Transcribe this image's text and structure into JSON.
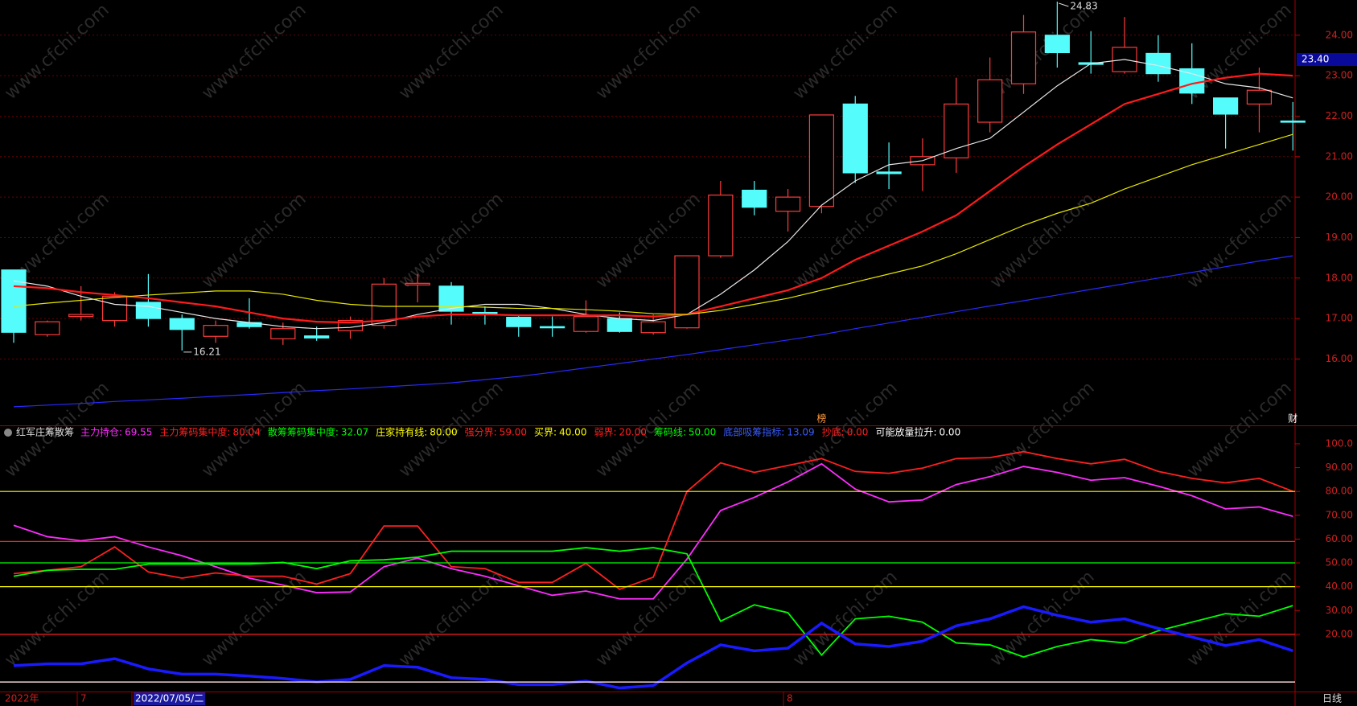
{
  "chart_data": [
    {
      "type": "candlestick",
      "ylim": [
        14.36,
        24.87
      ],
      "yticks": [
        {
          "value": 16,
          "label": "16.00"
        },
        {
          "value": 17,
          "label": "17.00"
        },
        {
          "value": 18,
          "label": "18.00"
        },
        {
          "value": 19,
          "label": "19.00"
        },
        {
          "value": 20,
          "label": "20.00"
        },
        {
          "value": 21,
          "label": "21.00"
        },
        {
          "value": 22,
          "label": "22.00"
        },
        {
          "value": 23,
          "label": "23.00"
        },
        {
          "value": 24,
          "label": "24.00"
        }
      ],
      "grid": true,
      "up_color": "#ff3c3c",
      "down_color": "#54fcfc",
      "open": [
        18.2,
        16.6,
        17.05,
        16.95,
        17.4,
        17.0,
        16.56,
        16.9,
        16.5,
        16.57,
        16.7,
        16.83,
        17.83,
        17.8,
        17.15,
        17.03,
        16.8,
        16.68,
        17.0,
        16.65,
        16.77,
        18.55,
        20.17,
        19.65,
        19.77,
        22.3,
        20.62,
        20.8,
        20.97,
        21.85,
        22.8,
        24.0,
        23.32,
        23.1,
        23.55,
        23.17,
        22.45,
        22.3,
        21.88
      ],
      "high": [
        18.2,
        16.95,
        17.8,
        17.65,
        18.1,
        17.1,
        16.95,
        17.5,
        16.9,
        16.8,
        17.05,
        18.0,
        18.1,
        17.9,
        17.3,
        17.1,
        17.05,
        17.45,
        17.15,
        17.1,
        18.55,
        20.4,
        20.4,
        20.2,
        22.03,
        22.5,
        21.35,
        21.45,
        22.95,
        23.45,
        24.5,
        24.83,
        24.1,
        24.45,
        24.0,
        23.8,
        22.45,
        23.2,
        22.35
      ],
      "low": [
        16.4,
        16.55,
        16.95,
        16.8,
        16.8,
        16.21,
        16.4,
        16.75,
        16.35,
        16.45,
        16.5,
        16.75,
        17.4,
        16.85,
        16.85,
        16.55,
        16.55,
        16.65,
        16.65,
        16.6,
        16.75,
        18.5,
        19.55,
        19.15,
        19.6,
        20.35,
        20.2,
        20.15,
        20.6,
        21.6,
        22.55,
        23.2,
        23.05,
        23.05,
        22.85,
        22.3,
        21.2,
        21.6,
        21.15
      ],
      "close": [
        16.66,
        16.92,
        17.1,
        17.55,
        17.0,
        16.73,
        16.83,
        16.8,
        16.75,
        16.52,
        16.95,
        17.85,
        17.87,
        17.18,
        17.12,
        16.8,
        16.78,
        17.05,
        16.68,
        16.92,
        18.55,
        20.05,
        19.75,
        20.0,
        22.03,
        20.6,
        20.58,
        21.0,
        22.3,
        22.9,
        24.08,
        23.57,
        23.28,
        23.7,
        23.05,
        22.57,
        22.05,
        22.64,
        21.86
      ],
      "series": [
        {
          "color": "#e8e8e8",
          "values": [
            17.93,
            17.8,
            17.55,
            17.35,
            17.3,
            17.15,
            17.0,
            16.9,
            16.8,
            16.75,
            16.78,
            16.9,
            17.1,
            17.25,
            17.35,
            17.35,
            17.25,
            17.1,
            17.0,
            16.95,
            17.1,
            17.6,
            18.2,
            18.9,
            19.8,
            20.4,
            20.8,
            20.9,
            21.2,
            21.45,
            22.1,
            22.75,
            23.3,
            23.4,
            23.25,
            23.05,
            22.8,
            22.7,
            22.45
          ]
        },
        {
          "color": "#ff1a1a",
          "values": [
            17.8,
            17.75,
            17.65,
            17.58,
            17.5,
            17.4,
            17.3,
            17.15,
            17.0,
            16.92,
            16.9,
            16.95,
            17.05,
            17.1,
            17.1,
            17.08,
            17.08,
            17.08,
            17.08,
            17.05,
            17.1,
            17.3,
            17.5,
            17.7,
            18.0,
            18.45,
            18.8,
            19.15,
            19.55,
            20.15,
            20.75,
            21.3,
            21.8,
            22.3,
            22.55,
            22.8,
            22.95,
            23.05,
            23.0
          ]
        },
        {
          "color": "#e6e600",
          "values": [
            17.3,
            17.38,
            17.45,
            17.52,
            17.58,
            17.63,
            17.68,
            17.68,
            17.6,
            17.45,
            17.35,
            17.3,
            17.3,
            17.3,
            17.28,
            17.25,
            17.25,
            17.22,
            17.18,
            17.12,
            17.1,
            17.2,
            17.35,
            17.5,
            17.7,
            17.9,
            18.1,
            18.3,
            18.6,
            18.95,
            19.3,
            19.6,
            19.85,
            20.2,
            20.5,
            20.8,
            21.05,
            21.3,
            21.55
          ]
        },
        {
          "color": "#2a2aff",
          "values": [
            14.82,
            14.86,
            14.9,
            14.95,
            14.99,
            15.03,
            15.08,
            15.12,
            15.17,
            15.22,
            15.26,
            15.31,
            15.36,
            15.41,
            15.49,
            15.57,
            15.67,
            15.78,
            15.89,
            16.0,
            16.11,
            16.23,
            16.35,
            16.47,
            16.6,
            16.75,
            16.89,
            17.03,
            17.17,
            17.31,
            17.44,
            17.58,
            17.72,
            17.86,
            18.0,
            18.14,
            18.28,
            18.42,
            18.55
          ]
        }
      ],
      "high_mark": 24.83,
      "low_mark": 16.21,
      "price_marker": {
        "value": 23.4,
        "label": "23.40"
      },
      "markers": [
        "榜",
        "财"
      ]
    },
    {
      "type": "line",
      "title": "红军庄筹散筹",
      "ylim": [
        -4,
        107.4
      ],
      "yticks": [
        {
          "value": 20,
          "label": "20.00"
        },
        {
          "value": 30,
          "label": "30.00"
        },
        {
          "value": 40,
          "label": "40.00"
        },
        {
          "value": 50,
          "label": "50.00"
        },
        {
          "value": 60,
          "label": "60.00"
        },
        {
          "value": 70,
          "label": "70.00"
        },
        {
          "value": 80,
          "label": "80.00"
        },
        {
          "value": 90,
          "label": "90.00"
        },
        {
          "value": 100,
          "label": "100.0"
        }
      ],
      "series": [
        {
          "name": "主力持仓:",
          "color": "#ff2cff",
          "last_label": "69.55",
          "values": [
            65.8,
            61,
            59.3,
            61,
            56.7,
            53,
            48.4,
            43.6,
            40.7,
            37.5,
            37.8,
            48.4,
            52,
            47.6,
            44.4,
            40.4,
            36.4,
            38.2,
            34.9,
            34.9,
            51.6,
            72,
            77.5,
            84,
            91.6,
            81,
            75.6,
            76.4,
            82.9,
            86.2,
            90.5,
            88,
            84.7,
            85.8,
            82.2,
            78.2,
            72.7,
            73.5,
            69.55
          ]
        },
        {
          "name": "主力筹码集中度:",
          "color": "#ff2020",
          "last_label": "80.04",
          "values": [
            45.5,
            46.9,
            48.4,
            56.7,
            46.2,
            43.6,
            45.8,
            44.4,
            44.4,
            41.1,
            45.5,
            65.5,
            65.5,
            48.4,
            47.6,
            41.8,
            41.8,
            49.8,
            38.9,
            44,
            80,
            92,
            88,
            90.9,
            93.8,
            88.4,
            87.6,
            89.8,
            93.8,
            94.2,
            96.7,
            93.8,
            91.6,
            93.5,
            88.4,
            85.5,
            83.6,
            85.5,
            80.04
          ]
        },
        {
          "name": "散筹筹码集中度:",
          "color": "#00ff00",
          "last_label": "32.07",
          "values": [
            44.4,
            46.9,
            47.3,
            47.3,
            49.5,
            49.5,
            49.5,
            49.5,
            50.2,
            47.6,
            50.9,
            51.3,
            52.4,
            54.9,
            54.9,
            54.9,
            54.9,
            56.4,
            54.9,
            56.4,
            53.8,
            25.5,
            32.4,
            29.1,
            11.3,
            26.5,
            27.6,
            25.1,
            16.4,
            15.6,
            10.5,
            14.9,
            17.8,
            16.4,
            21.5,
            25.1,
            28.7,
            27.6,
            32.07
          ]
        },
        {
          "name": "庄家持有线:",
          "color": "#ffff00",
          "level": 80,
          "level_label": "80.00"
        },
        {
          "name": "强分界:",
          "color": "#ff2020",
          "level": 59,
          "level_label": "59.00"
        },
        {
          "name": "买界:",
          "color": "#ffff00",
          "level": 40,
          "level_label": "40.00"
        },
        {
          "name": "弱界:",
          "color": "#ff2020",
          "level": 20,
          "level_label": "20.00"
        },
        {
          "name": "筹码线:",
          "color": "#00ff00",
          "level": 50,
          "level_label": "50.00"
        },
        {
          "name": "底部吸筹指标:",
          "color": "#1a1aff",
          "last_label": "13.09",
          "values": [
            6.9,
            7.6,
            7.6,
            9.8,
            5.5,
            3.3,
            3.3,
            2.5,
            1.5,
            0,
            1.1,
            6.9,
            6.2,
            1.8,
            1.1,
            -1.1,
            -1.1,
            0.4,
            -2.5,
            -1.5,
            8,
            15.6,
            13.1,
            14.2,
            24.7,
            16,
            14.9,
            17.1,
            23.6,
            26.5,
            31.6,
            28,
            25.1,
            26.5,
            22.5,
            18.9,
            15.3,
            17.8,
            13.09
          ]
        },
        {
          "name": "抄底:",
          "color": "#ff2020",
          "level": 0,
          "level_label": "0.00"
        },
        {
          "name": "可能放量拉升:",
          "color": "#ffffff",
          "level": 0,
          "level_label": "0.00"
        }
      ]
    }
  ],
  "status_bar": {
    "labels": [
      "2022年",
      "7",
      "2022/07/05/二",
      "8"
    ],
    "period": "日线"
  },
  "watermark": "www.cfchi.com"
}
